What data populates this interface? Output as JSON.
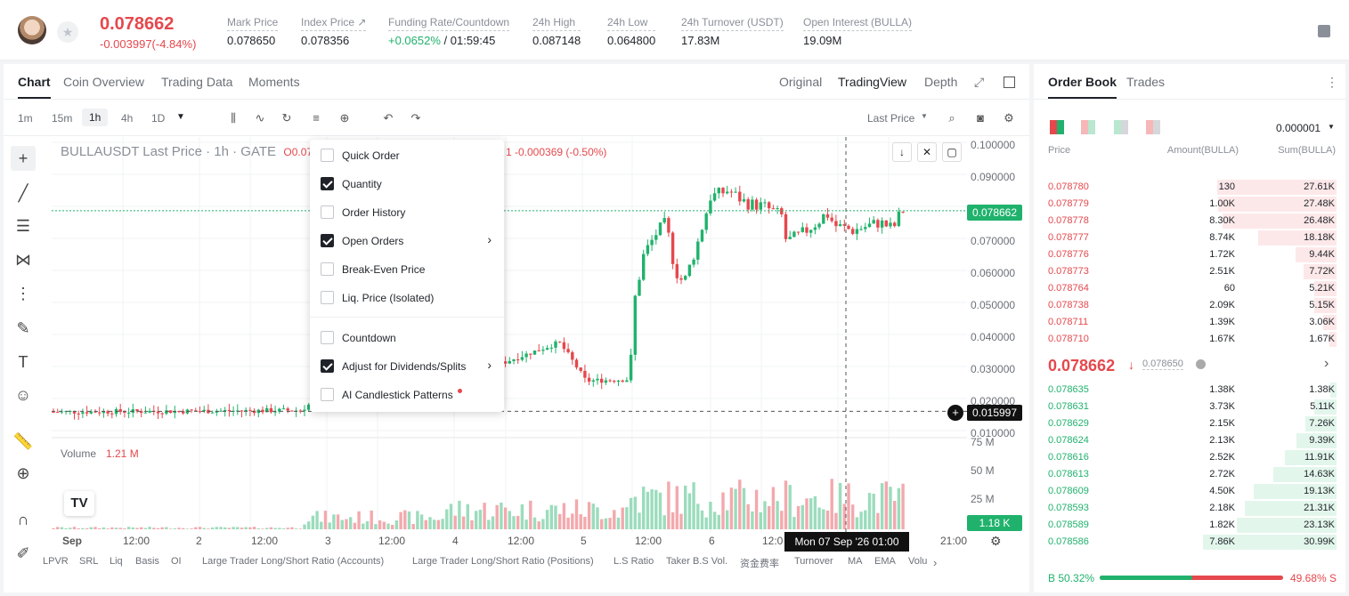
{
  "header": {
    "last_price": "0.078662",
    "change": "-0.003997(-4.84%)",
    "stats": [
      {
        "label": "Mark Price",
        "value": "0.078650",
        "x": 255
      },
      {
        "label": "Index Price ↗",
        "value": "0.078356",
        "x": 338
      },
      {
        "label": "Funding Rate/Countdown",
        "value": "+0.0652%",
        "value2": " / 01:59:45",
        "x": 436
      },
      {
        "label": "24h High",
        "value": "0.087148",
        "x": 598
      },
      {
        "label": "24h Low",
        "value": "0.064800",
        "x": 682
      },
      {
        "label": "24h Turnover (USDT)",
        "value": "17.83M",
        "x": 765
      },
      {
        "label": "Open Interest (BULLA)",
        "value": "19.09M",
        "x": 902
      }
    ]
  },
  "chart_tabs": [
    "Chart",
    "Coin Overview",
    "Trading Data",
    "Moments"
  ],
  "view_tabs": [
    "Original",
    "TradingView",
    "Depth"
  ],
  "intervals": [
    "1m",
    "15m",
    "1h",
    "4h",
    "1D"
  ],
  "price_source": "Last Price",
  "chart": {
    "title": "BULLAUSDT Last Price · 1h · GATE",
    "ohlc": "O0.07",
    "change_text": "1  -0.000369 (-0.50%)",
    "volume_label": "Volume",
    "volume_value": "1.21 M",
    "last_tag": "0.078662",
    "cross_tag": "0.015997",
    "vol_tag": "1.18 K",
    "crosshair_time": "Mon 07 Sep '26   01:00"
  },
  "chart_data": {
    "type": "candlestick",
    "y_ticks": [
      "0.100000",
      "0.090000",
      "0.080000",
      "0.070000",
      "0.060000",
      "0.050000",
      "0.040000",
      "0.030000",
      "0.020000",
      "0.010000"
    ],
    "vol_ticks": [
      "75 M",
      "50 M",
      "25 M"
    ],
    "x_ticks": [
      "Sep",
      "12:00",
      "2",
      "12:00",
      "3",
      "12:00",
      "4",
      "12:00",
      "5",
      "12:00",
      "6",
      "12:0",
      "0",
      "21:00"
    ],
    "ylim": [
      0.0065,
      0.1045
    ]
  },
  "menu": [
    {
      "label": "Quick Order",
      "checked": false
    },
    {
      "label": "Quantity",
      "checked": true
    },
    {
      "label": "Order History",
      "checked": false
    },
    {
      "label": "Open Orders",
      "checked": true,
      "arrow": true
    },
    {
      "label": "Break-Even Price",
      "checked": false
    },
    {
      "label": "Liq. Price (Isolated)",
      "checked": false
    },
    {
      "label": "Countdown",
      "checked": false
    },
    {
      "label": "Adjust for Dividends/Splits",
      "checked": true,
      "arrow": true
    },
    {
      "label": "AI Candlestick Patterns",
      "checked": false,
      "dot": true
    }
  ],
  "bottom_indicators": [
    "LPVR",
    "SRL",
    "Liq",
    "Basis",
    "OI",
    "Large Trader Long/Short Ratio (Accounts)",
    "Large Trader Long/Short Ratio (Positions)",
    "L.S Ratio",
    "Taker B.S Vol.",
    "资金费率",
    "Turnover",
    "MA",
    "EMA",
    "Volu"
  ],
  "orderbook": {
    "tabs": [
      "Order Book",
      "Trades"
    ],
    "precision": "0.000001",
    "headers": [
      "Price",
      "Amount(BULLA)",
      "Sum(BULLA)"
    ],
    "asks": [
      [
        "0.078780",
        "130",
        "27.61K"
      ],
      [
        "0.078779",
        "1.00K",
        "27.48K"
      ],
      [
        "0.078778",
        "8.30K",
        "26.48K"
      ],
      [
        "0.078777",
        "8.74K",
        "18.18K"
      ],
      [
        "0.078776",
        "1.72K",
        "9.44K"
      ],
      [
        "0.078773",
        "2.51K",
        "7.72K"
      ],
      [
        "0.078764",
        "60",
        "5.21K"
      ],
      [
        "0.078738",
        "2.09K",
        "5.15K"
      ],
      [
        "0.078711",
        "1.39K",
        "3.06K"
      ],
      [
        "0.078710",
        "1.67K",
        "1.67K"
      ]
    ],
    "mid_price": "0.078662",
    "mark": "0.078650",
    "bids": [
      [
        "0.078635",
        "1.38K",
        "1.38K"
      ],
      [
        "0.078631",
        "3.73K",
        "5.11K"
      ],
      [
        "0.078629",
        "2.15K",
        "7.26K"
      ],
      [
        "0.078624",
        "2.13K",
        "9.39K"
      ],
      [
        "0.078616",
        "2.52K",
        "11.91K"
      ],
      [
        "0.078613",
        "2.72K",
        "14.63K"
      ],
      [
        "0.078609",
        "4.50K",
        "19.13K"
      ],
      [
        "0.078593",
        "2.18K",
        "21.31K"
      ],
      [
        "0.078589",
        "1.82K",
        "23.13K"
      ],
      [
        "0.078586",
        "7.86K",
        "30.99K"
      ]
    ],
    "buy_ratio": "B 50.32%",
    "sell_ratio": "49.68% S",
    "buy_pct": 50.32
  }
}
